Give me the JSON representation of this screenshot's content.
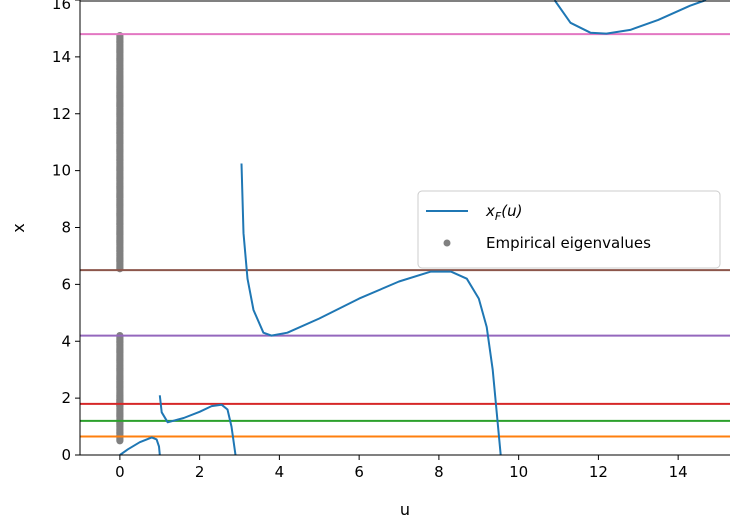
{
  "chart_data": {
    "type": "line",
    "xlabel": "u",
    "ylabel": "x",
    "xlim": [
      -1.0,
      15.3
    ],
    "ylim": [
      0,
      16
    ],
    "xticks": [
      0,
      2,
      4,
      6,
      8,
      10,
      12,
      14
    ],
    "yticks": [
      0,
      2,
      4,
      6,
      8,
      10,
      12,
      14,
      16
    ],
    "grid": false,
    "legend": {
      "placement": "center-right",
      "entries": [
        {
          "label": "x_F(u)",
          "color": "#1f77b4",
          "marker": "line"
        },
        {
          "label": "Empirical eigenvalues",
          "color": "#808080",
          "marker": "dot"
        }
      ]
    },
    "horizontal_lines": [
      {
        "y": 0.65,
        "color": "#ff7f0e"
      },
      {
        "y": 1.2,
        "color": "#2ca02c"
      },
      {
        "y": 1.8,
        "color": "#d62728"
      },
      {
        "y": 4.2,
        "color": "#9467bd"
      },
      {
        "y": 6.5,
        "color": "#8c564b"
      },
      {
        "y": 14.8,
        "color": "#e377c2"
      }
    ],
    "series": [
      {
        "name": "x_F(u)",
        "color": "#1f77b4",
        "segments": [
          [
            [
              0.0,
              0.0
            ],
            [
              0.2,
              0.2
            ],
            [
              0.5,
              0.45
            ],
            [
              0.8,
              0.62
            ],
            [
              0.92,
              0.55
            ],
            [
              0.98,
              0.3
            ],
            [
              1.0,
              0.0
            ]
          ],
          [
            [
              1.0,
              2.1
            ],
            [
              1.05,
              1.5
            ],
            [
              1.2,
              1.15
            ],
            [
              1.6,
              1.3
            ],
            [
              2.0,
              1.52
            ],
            [
              2.3,
              1.72
            ],
            [
              2.55,
              1.77
            ],
            [
              2.7,
              1.6
            ],
            [
              2.8,
              1.0
            ],
            [
              2.9,
              0.0
            ]
          ],
          [
            [
              3.05,
              10.25
            ],
            [
              3.1,
              7.8
            ],
            [
              3.2,
              6.2
            ],
            [
              3.35,
              5.1
            ],
            [
              3.6,
              4.3
            ],
            [
              3.8,
              4.2
            ],
            [
              4.2,
              4.3
            ],
            [
              5.0,
              4.8
            ],
            [
              6.0,
              5.5
            ],
            [
              7.0,
              6.1
            ],
            [
              7.8,
              6.45
            ],
            [
              8.3,
              6.45
            ],
            [
              8.7,
              6.2
            ],
            [
              9.0,
              5.5
            ],
            [
              9.2,
              4.5
            ],
            [
              9.35,
              3.0
            ],
            [
              9.45,
              1.5
            ],
            [
              9.55,
              0.0
            ]
          ],
          [
            [
              10.9,
              16.0
            ],
            [
              11.3,
              15.2
            ],
            [
              11.8,
              14.85
            ],
            [
              12.2,
              14.82
            ],
            [
              12.8,
              14.95
            ],
            [
              13.5,
              15.3
            ],
            [
              14.3,
              15.8
            ],
            [
              14.7,
              16.0
            ]
          ]
        ]
      }
    ],
    "scatter": {
      "name": "Empirical eigenvalues",
      "color": "#808080",
      "x": 0,
      "ranges": [
        [
          0.5,
          1.95
        ],
        [
          1.75,
          4.2
        ],
        [
          6.55,
          14.75
        ]
      ]
    }
  }
}
